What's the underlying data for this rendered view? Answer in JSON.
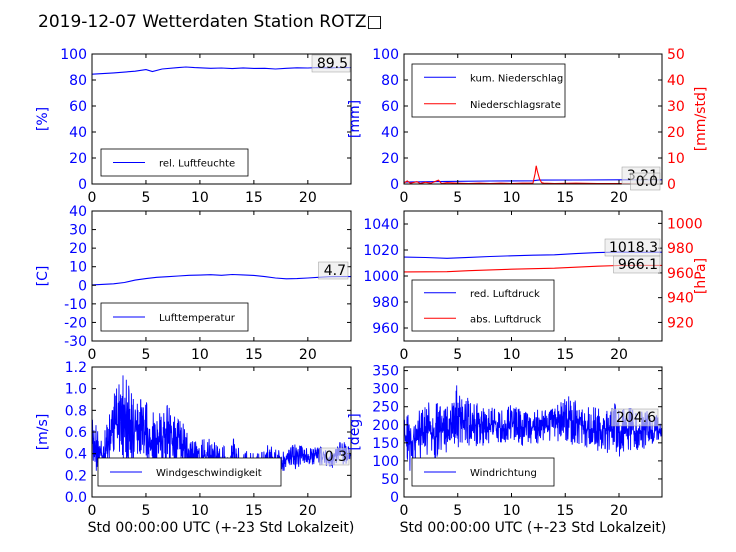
{
  "figure": {
    "title": "2019-12-07 Wetterdaten Station ROTZ□",
    "xlabel": "Std 00:00:00 UTC (+-23 Std Lokalzeit)"
  },
  "colors": {
    "primary": "#0000ff",
    "secondary": "#ff0000",
    "light": "#8080ff",
    "frame": "#000000"
  },
  "chart_data": [
    {
      "id": "humidity",
      "type": "line",
      "xlim": [
        0,
        24
      ],
      "xticks": [
        0,
        5,
        10,
        15,
        20
      ],
      "ylim": [
        0,
        100
      ],
      "yticks": [
        0,
        20,
        40,
        60,
        80,
        100
      ],
      "ylabel": "[%]",
      "series": [
        {
          "name": "rel. Luftfeuchte",
          "color": "#0000ff",
          "points": [
            [
              0,
              84.5
            ],
            [
              2,
              85.5
            ],
            [
              4,
              86.8
            ],
            [
              5,
              88
            ],
            [
              5.6,
              86.5
            ],
            [
              6.5,
              88.5
            ],
            [
              8,
              89.5
            ],
            [
              8.7,
              90
            ],
            [
              9.5,
              89.5
            ],
            [
              11,
              89
            ],
            [
              12,
              89.2
            ],
            [
              13,
              88.8
            ],
            [
              14,
              89.3
            ],
            [
              15,
              88.9
            ],
            [
              16,
              89
            ],
            [
              17,
              88.5
            ],
            [
              18,
              89
            ],
            [
              19,
              89.4
            ],
            [
              20,
              89.2
            ],
            [
              21,
              89.5
            ],
            [
              22,
              89.3
            ],
            [
              23,
              89.6
            ],
            [
              24,
              89.5
            ]
          ]
        }
      ],
      "last_value_label": "89.5",
      "legend": "lower-left"
    },
    {
      "id": "precipitation",
      "type": "line",
      "xlim": [
        0,
        24
      ],
      "xticks": [
        0,
        5,
        10,
        15,
        20
      ],
      "ylim": [
        0,
        100
      ],
      "yticks": [
        0,
        20,
        40,
        60,
        80,
        100
      ],
      "ylabel": "[mm]",
      "ylim_right": [
        0,
        50
      ],
      "yticks_right": [
        0,
        10,
        20,
        30,
        40,
        50
      ],
      "ylabel_right": "[mm/std]",
      "series": [
        {
          "name": "kum. Niederschlag",
          "color": "#0000ff",
          "axis": "left",
          "points": [
            [
              0,
              1.5
            ],
            [
              4,
              2
            ],
            [
              8,
              2.3
            ],
            [
              12,
              2.5
            ],
            [
              12.5,
              3
            ],
            [
              16,
              3.1
            ],
            [
              20,
              3.2
            ],
            [
              24,
              3.21
            ]
          ]
        },
        {
          "name": "Niederschlagsrate",
          "color": "#ff0000",
          "axis": "right",
          "points": [
            [
              0,
              0.4
            ],
            [
              0.3,
              1.2
            ],
            [
              0.6,
              0.3
            ],
            [
              1.2,
              0.9
            ],
            [
              1.5,
              0.2
            ],
            [
              2,
              0.7
            ],
            [
              2.5,
              0.3
            ],
            [
              3.2,
              1.5
            ],
            [
              3.5,
              0.2
            ],
            [
              4,
              0.5
            ],
            [
              5,
              0.3
            ],
            [
              6,
              0.2
            ],
            [
              7,
              0.3
            ],
            [
              8,
              0.2
            ],
            [
              9,
              0.3
            ],
            [
              10,
              0.2
            ],
            [
              11,
              0.3
            ],
            [
              12,
              0.4
            ],
            [
              12.2,
              4
            ],
            [
              12.3,
              7
            ],
            [
              12.4,
              5
            ],
            [
              12.6,
              2
            ],
            [
              12.8,
              0.5
            ],
            [
              13,
              0.3
            ],
            [
              14,
              0.2
            ],
            [
              16,
              0.3
            ],
            [
              18,
              0.2
            ],
            [
              20,
              0.2
            ],
            [
              22,
              0.1
            ],
            [
              24,
              0
            ]
          ]
        }
      ],
      "last_value_labels": [
        "3.21",
        "0.0"
      ],
      "legend": "upper-left"
    },
    {
      "id": "temperature",
      "type": "line",
      "xlim": [
        0,
        24
      ],
      "xticks": [
        0,
        5,
        10,
        15,
        20
      ],
      "ylim": [
        -30,
        40
      ],
      "yticks": [
        -30,
        -20,
        -10,
        0,
        10,
        20,
        30,
        40
      ],
      "ylabel": "[C]",
      "series": [
        {
          "name": "Lufttemperatur",
          "color": "#0000ff",
          "points": [
            [
              0,
              0.2
            ],
            [
              2,
              0.8
            ],
            [
              3,
              1.5
            ],
            [
              4,
              2.8
            ],
            [
              5,
              3.6
            ],
            [
              6,
              4.3
            ],
            [
              7,
              4.6
            ],
            [
              8,
              5
            ],
            [
              9,
              5.4
            ],
            [
              10,
              5.5
            ],
            [
              11,
              5.7
            ],
            [
              12,
              5.4
            ],
            [
              13,
              5.8
            ],
            [
              14,
              5.6
            ],
            [
              15,
              5.3
            ],
            [
              16,
              4.7
            ],
            [
              17,
              3.9
            ],
            [
              18,
              3.5
            ],
            [
              19,
              3.6
            ],
            [
              20,
              3.9
            ],
            [
              21,
              4.3
            ],
            [
              22,
              4.6
            ],
            [
              23,
              4.7
            ],
            [
              24,
              4.7
            ]
          ]
        }
      ],
      "last_value_label": "4.7",
      "legend": "lower-left"
    },
    {
      "id": "pressure",
      "type": "line",
      "xlim": [
        0,
        24
      ],
      "xticks": [
        0,
        5,
        10,
        15,
        20
      ],
      "ylim": [
        950,
        1050
      ],
      "yticks": [
        960,
        980,
        1000,
        1020,
        1040
      ],
      "ylim_right": [
        905,
        1010
      ],
      "yticks_right": [
        920,
        940,
        960,
        980,
        1000
      ],
      "ylabel_right": "[hPa]",
      "series": [
        {
          "name": "red. Luftdruck",
          "color": "#0000ff",
          "axis": "left",
          "points": [
            [
              0,
              1014.5
            ],
            [
              2,
              1014.2
            ],
            [
              4,
              1013.6
            ],
            [
              6,
              1014.3
            ],
            [
              8,
              1015
            ],
            [
              10,
              1015.5
            ],
            [
              12,
              1016
            ],
            [
              14,
              1016.3
            ],
            [
              16,
              1017.2
            ],
            [
              18,
              1018
            ],
            [
              20,
              1018.4
            ],
            [
              22,
              1018.2
            ],
            [
              24,
              1018.3
            ]
          ]
        },
        {
          "name": "abs. Luftdruck",
          "color": "#ff0000",
          "axis": "right",
          "points": [
            [
              0,
              960.8
            ],
            [
              2,
              960.9
            ],
            [
              4,
              961
            ],
            [
              6,
              961.8
            ],
            [
              8,
              962.4
            ],
            [
              10,
              963
            ],
            [
              12,
              963.4
            ],
            [
              14,
              963.8
            ],
            [
              16,
              964.6
            ],
            [
              18,
              965.4
            ],
            [
              20,
              966
            ],
            [
              22,
              966.1
            ],
            [
              24,
              966.1
            ]
          ]
        }
      ],
      "last_value_labels": [
        "1018.3",
        "966.1"
      ],
      "legend": "lower-left"
    },
    {
      "id": "windspeed",
      "type": "line",
      "xlim": [
        0,
        24
      ],
      "xticks": [
        0,
        5,
        10,
        15,
        20
      ],
      "ylim": [
        0,
        1.2
      ],
      "yticks": [
        0,
        0.2,
        0.4,
        0.6,
        0.8,
        1.0,
        1.2
      ],
      "ylabel": "[m/s]",
      "noise": {
        "seed": 11,
        "points_per_hour": 40
      },
      "series": [
        {
          "name": "Windgeschwindigkeit",
          "color": "#0000ff",
          "envelope": [
            [
              0,
              0.25,
              0.85
            ],
            [
              1,
              0.2,
              0.55
            ],
            [
              2,
              0.35,
              0.95
            ],
            [
              3,
              0.3,
              1.15
            ],
            [
              4,
              0.3,
              0.95
            ],
            [
              5,
              0.3,
              0.9
            ],
            [
              6,
              0.2,
              0.75
            ],
            [
              7,
              0.3,
              0.85
            ],
            [
              8,
              0.3,
              0.8
            ],
            [
              9,
              0.2,
              0.55
            ],
            [
              10,
              0.15,
              0.55
            ],
            [
              11,
              0.15,
              0.55
            ],
            [
              12,
              0.15,
              0.45
            ],
            [
              13,
              0.2,
              0.55
            ],
            [
              14,
              0.15,
              0.45
            ],
            [
              15,
              0.15,
              0.4
            ],
            [
              16,
              0.15,
              0.5
            ],
            [
              17,
              0.2,
              0.45
            ],
            [
              18,
              0.25,
              0.45
            ],
            [
              19,
              0.25,
              0.5
            ],
            [
              20,
              0.3,
              0.45
            ],
            [
              21,
              0.3,
              0.5
            ],
            [
              22,
              0.25,
              0.4
            ],
            [
              23,
              0.3,
              0.55
            ],
            [
              24,
              0.3,
              0.45
            ]
          ]
        },
        {
          "name": "",
          "color": "#8080ff",
          "envelope": [
            [
              7,
              0.2,
              0.35
            ],
            [
              9,
              0.15,
              0.3
            ],
            [
              11,
              0.12,
              0.28
            ],
            [
              13,
              0.15,
              0.3
            ],
            [
              15,
              0.12,
              0.28
            ],
            [
              17,
              0.15,
              0.3
            ]
          ]
        }
      ],
      "last_value_label": "0.3",
      "legend": "lower-left"
    },
    {
      "id": "winddirection",
      "type": "line",
      "xlim": [
        0,
        24
      ],
      "xticks": [
        0,
        5,
        10,
        15,
        20
      ],
      "ylim": [
        0,
        360
      ],
      "yticks": [
        0,
        50,
        100,
        150,
        200,
        250,
        300,
        350
      ],
      "ylabel": "[deg]",
      "noise": {
        "seed": 23,
        "points_per_hour": 40
      },
      "series": [
        {
          "name": "Windrichtung",
          "color": "#0000ff",
          "envelope": [
            [
              0,
              80,
              250
            ],
            [
              1,
              60,
              240
            ],
            [
              2,
              100,
              260
            ],
            [
              3,
              90,
              270
            ],
            [
              4,
              110,
              260
            ],
            [
              5,
              120,
              330
            ],
            [
              6,
              140,
              270
            ],
            [
              7,
              130,
              260
            ],
            [
              8,
              140,
              250
            ],
            [
              9,
              150,
              240
            ],
            [
              10,
              150,
              260
            ],
            [
              11,
              140,
              240
            ],
            [
              12,
              150,
              240
            ],
            [
              13,
              140,
              250
            ],
            [
              14,
              150,
              270
            ],
            [
              15,
              150,
              290
            ],
            [
              16,
              140,
              270
            ],
            [
              17,
              130,
              250
            ],
            [
              18,
              120,
              250
            ],
            [
              19,
              110,
              260
            ],
            [
              20,
              110,
              260
            ],
            [
              21,
              120,
              250
            ],
            [
              22,
              130,
              240
            ],
            [
              23,
              140,
              240
            ],
            [
              24,
              150,
              240
            ]
          ]
        }
      ],
      "last_value_label": "204.6",
      "legend": "lower-left"
    }
  ]
}
